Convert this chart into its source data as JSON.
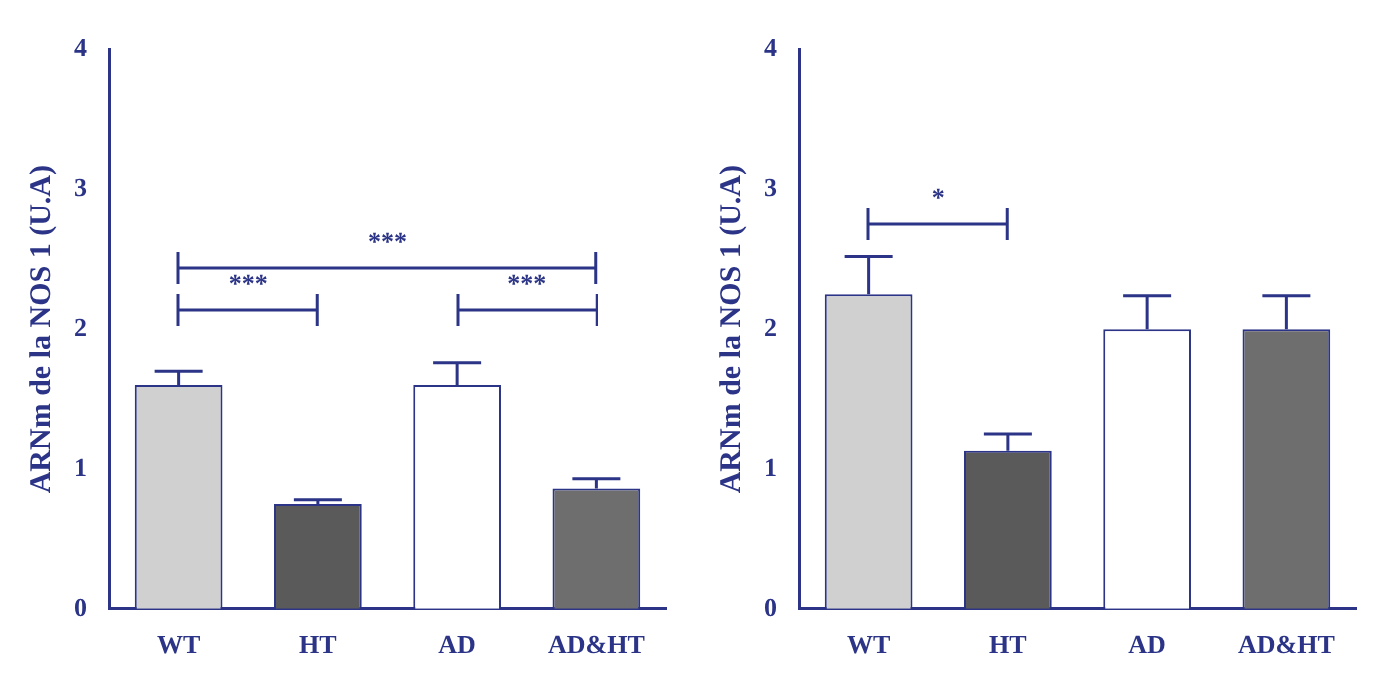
{
  "chart_data": [
    {
      "type": "bar",
      "ylabel": "ARNm de la NOS 1 (U.A)",
      "categories": [
        "WT",
        "HT",
        "AD",
        "AD&HT"
      ],
      "values": [
        1.6,
        0.75,
        1.6,
        0.86
      ],
      "colors": [
        "#d0d0d0",
        "#5a5a5a",
        "#ffffff",
        "#6e6e6e"
      ],
      "errors": [
        [
          1.6,
          1.7
        ],
        [
          0.75,
          0.78
        ],
        [
          1.6,
          1.76
        ],
        [
          0.86,
          0.93
        ]
      ],
      "ylim": [
        0,
        4
      ],
      "yticks": [
        0,
        1,
        2,
        3,
        4
      ],
      "grid": false,
      "legend": false,
      "annotations": [
        "***",
        "***",
        "***"
      ]
    },
    {
      "type": "bar",
      "ylabel": "ARNm de la NOS 1 (U.A)",
      "categories": [
        "WT",
        "HT",
        "AD",
        "AD&HT"
      ],
      "values": [
        2.25,
        1.13,
        2.0,
        2.0
      ],
      "colors": [
        "#d0d0d0",
        "#5a5a5a",
        "#ffffff",
        "#6e6e6e"
      ],
      "errors": [
        [
          2.25,
          2.52
        ],
        [
          1.13,
          1.25
        ],
        [
          2.0,
          2.24
        ],
        [
          2.0,
          2.24
        ]
      ],
      "ylim": [
        0,
        4
      ],
      "yticks": [
        0,
        1,
        2,
        3,
        4
      ],
      "grid": false,
      "legend": false,
      "annotations": [
        "*"
      ]
    }
  ]
}
